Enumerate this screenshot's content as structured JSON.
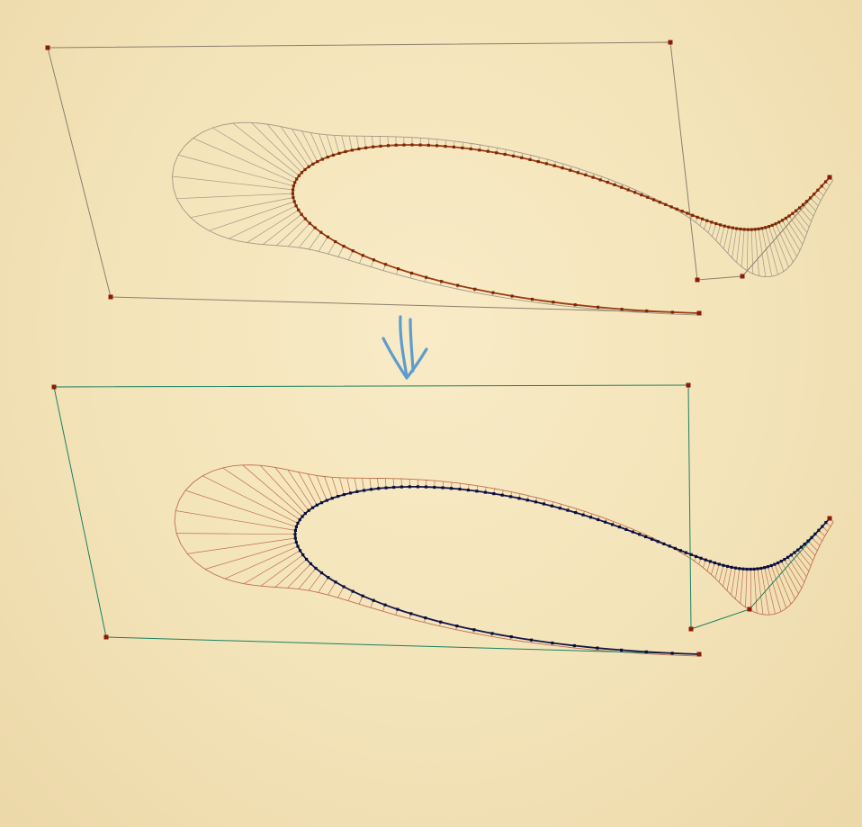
{
  "diagram": {
    "kind": "bezier-curve-curvature-comb",
    "colors": {
      "background": "#f3e3b8",
      "top_polygon": "#8a7f70",
      "top_curve": "#9b3a10",
      "top_curve_points": "#7a2808",
      "top_comb": "#a39888",
      "top_control_point": "#8b1a0a",
      "bottom_polygon": "#1a8060",
      "bottom_curve": "#101548",
      "bottom_curve_points": "#0a0f40",
      "bottom_comb": "#c07050",
      "bottom_control_point": "#8b1a0a",
      "arrow": "#5d9ccf"
    },
    "arrow_icon": "double-down-arrow",
    "curves": [
      {
        "name": "original-curve",
        "control_points": [
          [
            777,
            348
          ],
          [
            123,
            330
          ],
          [
            53,
            53
          ],
          [
            745,
            47
          ],
          [
            775,
            311
          ],
          [
            825,
            307
          ],
          [
            922,
            197
          ]
        ]
      },
      {
        "name": "modified-curve",
        "control_points": [
          [
            777,
            727
          ],
          [
            118,
            708
          ],
          [
            60,
            430
          ],
          [
            765,
            428
          ],
          [
            768,
            699
          ],
          [
            833,
            677
          ],
          [
            922,
            576
          ]
        ]
      }
    ]
  }
}
